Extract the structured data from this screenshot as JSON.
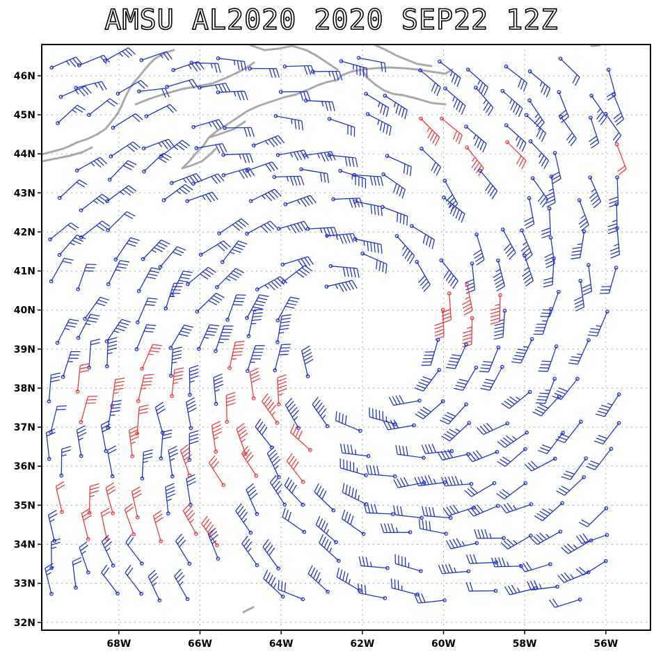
{
  "title": "AMSU AL2020 2020 SEP22 12Z",
  "map": {
    "lon_range": [
      -69.9,
      -54.9
    ],
    "lat_range": [
      31.8,
      46.8
    ],
    "lon_ticks": [
      {
        "value": -68,
        "label": "68W"
      },
      {
        "value": -66,
        "label": "66W"
      },
      {
        "value": -64,
        "label": "64W"
      },
      {
        "value": -62,
        "label": "62W"
      },
      {
        "value": -60,
        "label": "60W"
      },
      {
        "value": -58,
        "label": "58W"
      },
      {
        "value": -56,
        "label": "56W"
      }
    ],
    "lat_ticks": [
      {
        "value": 32,
        "label": "32N"
      },
      {
        "value": 33,
        "label": "33N"
      },
      {
        "value": 34,
        "label": "34N"
      },
      {
        "value": 35,
        "label": "35N"
      },
      {
        "value": 36,
        "label": "36N"
      },
      {
        "value": 37,
        "label": "37N"
      },
      {
        "value": 38,
        "label": "38N"
      },
      {
        "value": 39,
        "label": "39N"
      },
      {
        "value": 40,
        "label": "40N"
      },
      {
        "value": 41,
        "label": "41N"
      },
      {
        "value": 42,
        "label": "42N"
      },
      {
        "value": 43,
        "label": "43N"
      },
      {
        "value": 44,
        "label": "44N"
      },
      {
        "value": 45,
        "label": "45N"
      },
      {
        "value": 46,
        "label": "46N"
      }
    ],
    "grid": "dotted",
    "colors": {
      "blue_barb": "#2233cc",
      "red_barb": "#ee3b3b",
      "coastline": "#aaaaaa",
      "grid": "#aaaaaa"
    },
    "storm_center": {
      "lon": -61.9,
      "lat": 39.2
    }
  }
}
